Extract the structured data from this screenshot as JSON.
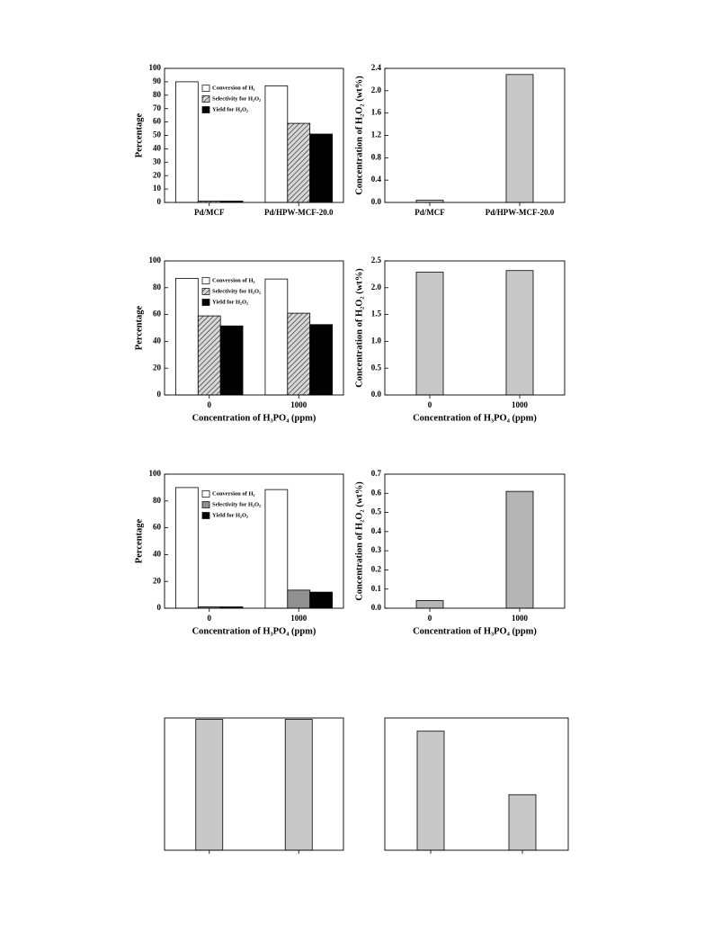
{
  "chart_data": [
    {
      "type": "bar",
      "categories": [
        "Pd/MCF",
        "Pd/HPW-MCF-20.0"
      ],
      "ylabel": "Percentage",
      "ylim": [
        0,
        100
      ],
      "yticks": [
        0,
        10,
        20,
        30,
        40,
        50,
        60,
        70,
        80,
        90,
        100
      ],
      "legend": "upper left",
      "series": [
        {
          "name": "Conversion of H₂",
          "color": "#ffffff",
          "values": [
            90,
            87
          ]
        },
        {
          "name": "Selectivity for H₂O₂",
          "color": "#888888",
          "hatch": true,
          "values": [
            1,
            59
          ]
        },
        {
          "name": "Yield for H₂O₂",
          "color": "#000000",
          "values": [
            1,
            51
          ]
        }
      ]
    },
    {
      "type": "bar",
      "categories": [
        "Pd/MCF",
        "Pd/HPW-MCF-20.0"
      ],
      "ylabel": "Concentration of H₂O₂ (wt%)",
      "ylim": [
        0,
        2.4
      ],
      "yticks": [
        {
          "value": 0,
          "label": "0.0"
        },
        0.4,
        0.8,
        1.2,
        1.6,
        {
          "value": 2,
          "label": "2.0"
        },
        2.4
      ],
      "color": "#c8c8c8",
      "values": [
        0.04,
        2.29
      ]
    },
    {
      "type": "bar",
      "categories": [
        "0",
        "1000"
      ],
      "xlabel": "Concentration of H₃PO₄ (ppm)",
      "ylabel": "Percentage",
      "ylim": [
        0,
        100
      ],
      "yticks": [
        0,
        20,
        40,
        60,
        80,
        100
      ],
      "legend": "upper left",
      "series": [
        {
          "name": "Conversion of H₂",
          "color": "#ffffff",
          "values": [
            87,
            86.5
          ]
        },
        {
          "name": "Selectivity for H₂O₂",
          "color": "#888888",
          "hatch": true,
          "values": [
            59,
            61
          ]
        },
        {
          "name": "Yield for H₂O₂",
          "color": "#000000",
          "values": [
            51.5,
            52.5
          ]
        }
      ]
    },
    {
      "type": "bar",
      "categories": [
        "0",
        "1000"
      ],
      "xlabel": "Concentration of H₃PO₄ (ppm)",
      "ylabel": "Concentration of H₂O₂ (wt%)",
      "ylim": [
        0,
        2.5
      ],
      "yticks": [
        {
          "value": 0,
          "label": "0.0"
        },
        0.5,
        {
          "value": 1,
          "label": "1.0"
        },
        1.5,
        {
          "value": 2,
          "label": "2.0"
        },
        2.5
      ],
      "color": "#c8c8c8",
      "values": [
        2.29,
        2.32
      ]
    },
    {
      "type": "bar",
      "categories": [
        "0",
        "1000"
      ],
      "xlabel": "Concentration of H₃PO₄ (ppm)",
      "ylabel": "Percentage",
      "ylim": [
        0,
        100
      ],
      "yticks": [
        0,
        20,
        40,
        60,
        80,
        100
      ],
      "legend": "upper left",
      "series": [
        {
          "name": "Conversion of H₂",
          "color": "#ffffff",
          "values": [
            90,
            88.5
          ]
        },
        {
          "name": "Selectivity for H₂O₂",
          "color": "#909090",
          "values": [
            1,
            13.5
          ]
        },
        {
          "name": "Yield for H₂O₂",
          "color": "#000000",
          "values": [
            1,
            12
          ]
        }
      ]
    },
    {
      "type": "bar",
      "categories": [
        "0",
        "1000"
      ],
      "xlabel": "Concentration of H₃PO₄ (ppm)",
      "ylabel": "Concentration of H₂O₂ (wt%)",
      "ylim": [
        0,
        0.7
      ],
      "yticks": [
        {
          "value": 0,
          "label": "0.0"
        },
        0.1,
        0.2,
        0.3,
        0.4,
        0.5,
        0.6,
        0.7
      ],
      "color": "#b4b4b4",
      "values": [
        0.04,
        0.61
      ]
    },
    {
      "type": "bar",
      "categories": [
        null,
        null
      ],
      "ylim": [
        0,
        100
      ],
      "color": "#c8c8c8",
      "values": [
        99,
        99
      ]
    },
    {
      "type": "bar",
      "categories": [
        null,
        null
      ],
      "ylim": [
        0,
        100
      ],
      "color": "#c8c8c8",
      "values": [
        90,
        42
      ]
    }
  ]
}
